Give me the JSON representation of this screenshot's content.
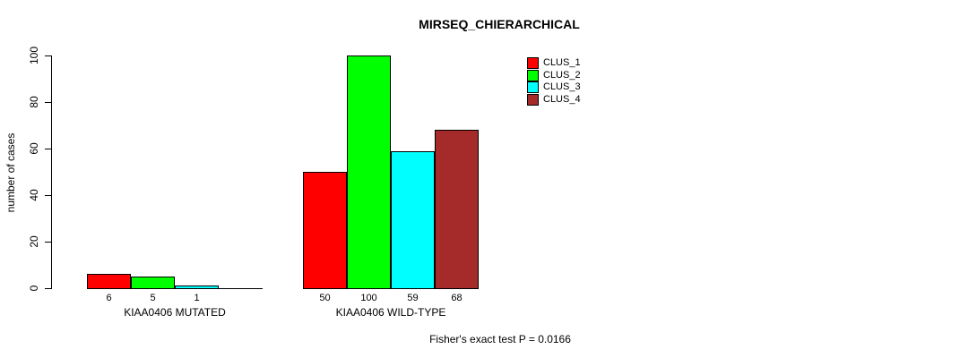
{
  "chart_data": {
    "type": "bar",
    "title": "MIRSEQ_CHIERARCHICAL",
    "ylabel": "number of cases",
    "xlabel": "",
    "ylim": [
      0,
      100
    ],
    "yticks": [
      0,
      20,
      40,
      60,
      80,
      100
    ],
    "grid": false,
    "legend_position": "top-right",
    "categories": [
      "KIAA0406 MUTATED",
      "KIAA0406 WILD-TYPE"
    ],
    "series": [
      {
        "name": "CLUS_1",
        "color": "#FF0000",
        "values": [
          6,
          50
        ]
      },
      {
        "name": "CLUS_2",
        "color": "#00FF00",
        "values": [
          5,
          100
        ]
      },
      {
        "name": "CLUS_3",
        "color": "#00FFFF",
        "values": [
          1,
          59
        ]
      },
      {
        "name": "CLUS_4",
        "color": "#A52A2A",
        "values": [
          0,
          68
        ]
      }
    ],
    "bar_value_labels": [
      [
        "6",
        "5",
        "1",
        ""
      ],
      [
        "50",
        "100",
        "59",
        "68"
      ]
    ],
    "footer": "Fisher's exact test P = 0.0166"
  }
}
